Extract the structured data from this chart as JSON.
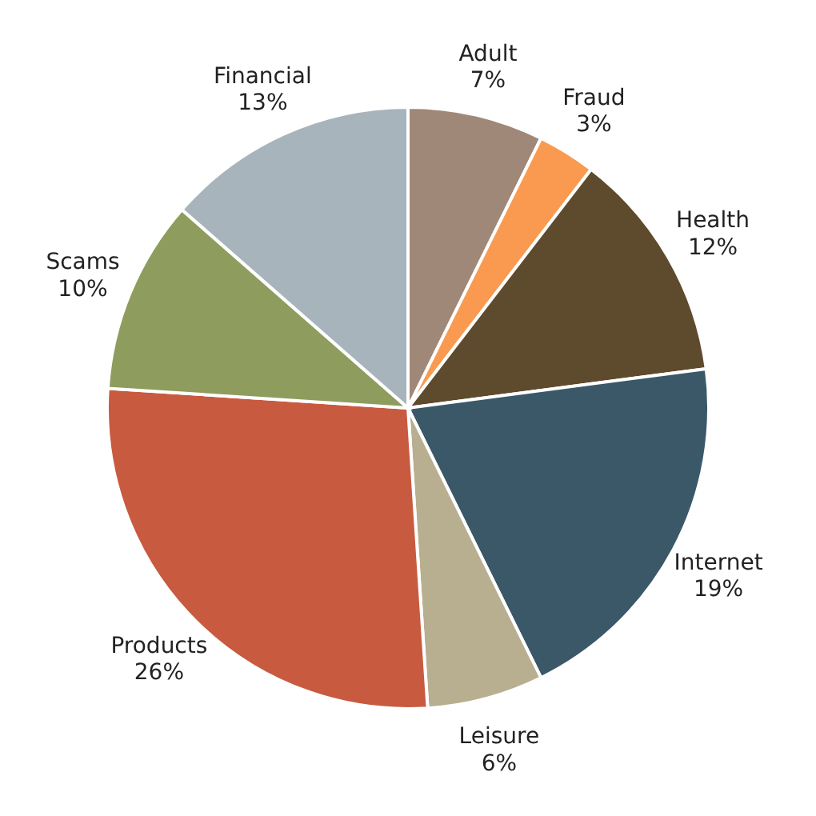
{
  "chart_data": {
    "type": "pie",
    "categories": [
      "Adult",
      "Fraud",
      "Health",
      "Internet",
      "Leisure",
      "Products",
      "Scams",
      "Financial"
    ],
    "values": [
      7,
      3,
      12,
      19,
      6,
      26,
      10,
      13
    ],
    "value_labels": [
      "7%",
      "3%",
      "12%",
      "19%",
      "6%",
      "26%",
      "10%",
      "13%"
    ],
    "colors": [
      "#a08878",
      "#f99a50",
      "#5e4a2c",
      "#3a5868",
      "#b8ae90",
      "#c85a40",
      "#8e9c5e",
      "#a8b4bc"
    ]
  }
}
